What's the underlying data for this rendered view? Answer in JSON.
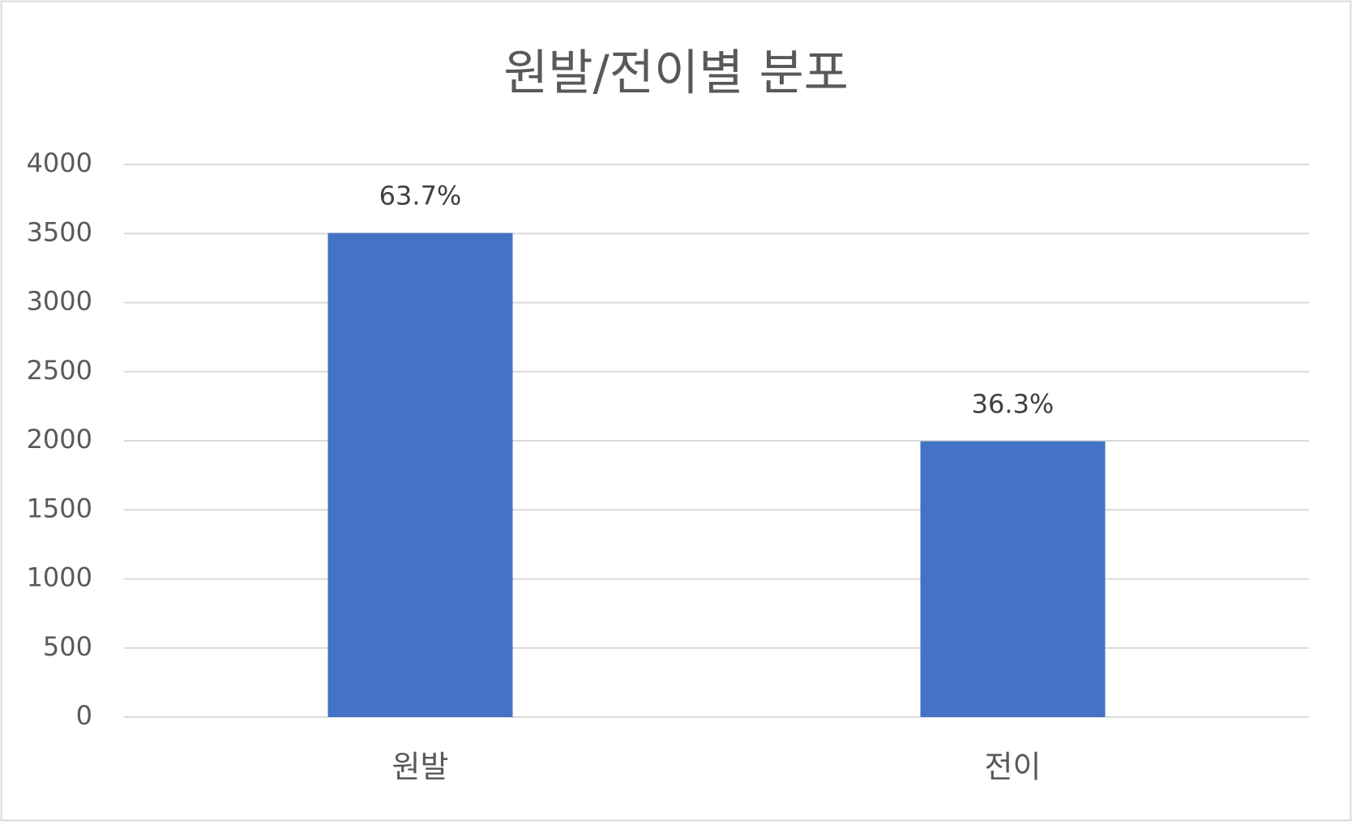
{
  "chart_data": {
    "type": "bar",
    "title": "원발/전이별 분포",
    "categories": [
      "원발",
      "전이"
    ],
    "values": [
      3504,
      1996
    ],
    "value_labels": [
      "63.7%",
      "36.3%"
    ],
    "color": "#4472c4",
    "ylim": [
      0,
      4000
    ],
    "yticks": [
      0,
      500,
      1000,
      1500,
      2000,
      2500,
      3000,
      3500,
      4000
    ],
    "grid": true
  }
}
